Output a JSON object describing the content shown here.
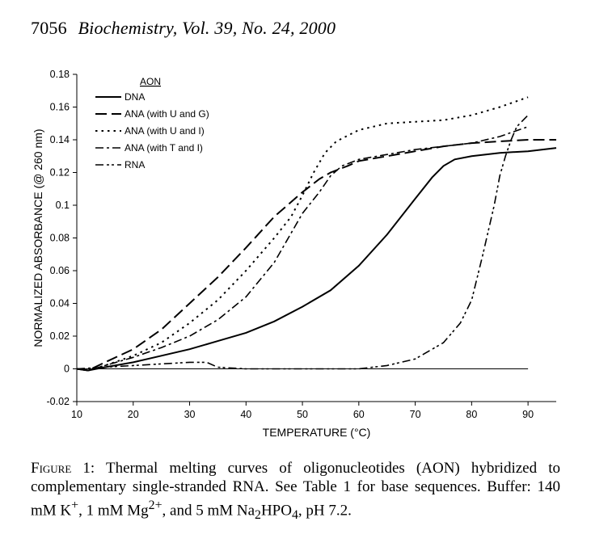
{
  "header": {
    "page_number": "7056",
    "journal": "Biochemistry, Vol. 39, No. 24, 2000"
  },
  "chart_data": {
    "type": "line",
    "xlabel": "TEMPERATURE (°C)",
    "ylabel": "NORMALIZED ABSORBANCE (@ 260 nm)",
    "xlim": [
      10,
      95
    ],
    "ylim": [
      -0.02,
      0.18
    ],
    "x_ticks": [
      "10",
      "20",
      "30",
      "40",
      "50",
      "60",
      "70",
      "80",
      "90"
    ],
    "y_ticks": [
      "-0.02",
      "0",
      "0.02",
      "0.04",
      "0.06",
      "0.08",
      "0.1",
      "0.12",
      "0.14",
      "0.16",
      "0.18"
    ],
    "legend_title": "AON",
    "legend_position": "top-left",
    "baseline": {
      "x": [
        10,
        90
      ],
      "y": [
        0,
        0
      ]
    },
    "series": [
      {
        "name": "DNA",
        "dash": "solid",
        "x": [
          10,
          12,
          15,
          20,
          25,
          30,
          35,
          40,
          45,
          50,
          55,
          60,
          65,
          70,
          73,
          75,
          77,
          80,
          85,
          90,
          95
        ],
        "y": [
          0.0,
          -0.001,
          0.001,
          0.004,
          0.008,
          0.012,
          0.017,
          0.022,
          0.029,
          0.038,
          0.048,
          0.063,
          0.082,
          0.104,
          0.117,
          0.124,
          0.128,
          0.13,
          0.132,
          0.133,
          0.135
        ]
      },
      {
        "name": "ANA (with U and G)",
        "dash": "long",
        "x": [
          10,
          12,
          15,
          20,
          25,
          30,
          35,
          40,
          45,
          50,
          53,
          55,
          58,
          60,
          65,
          70,
          75,
          80,
          85,
          90,
          95
        ],
        "y": [
          0.0,
          -0.001,
          0.004,
          0.012,
          0.024,
          0.04,
          0.056,
          0.074,
          0.093,
          0.108,
          0.116,
          0.12,
          0.124,
          0.127,
          0.13,
          0.133,
          0.136,
          0.138,
          0.139,
          0.14,
          0.14
        ]
      },
      {
        "name": "ANA (with U and I)",
        "dash": "dotted",
        "x": [
          10,
          12,
          15,
          20,
          25,
          30,
          35,
          40,
          45,
          48,
          50,
          52,
          54,
          56,
          60,
          65,
          70,
          75,
          80,
          85,
          90
        ],
        "y": [
          0.0,
          -0.001,
          0.002,
          0.008,
          0.016,
          0.028,
          0.042,
          0.06,
          0.08,
          0.093,
          0.106,
          0.12,
          0.132,
          0.139,
          0.146,
          0.15,
          0.151,
          0.152,
          0.155,
          0.16,
          0.166
        ]
      },
      {
        "name": "ANA (with T and I)",
        "dash": "dashdot",
        "x": [
          10,
          12,
          15,
          20,
          25,
          30,
          35,
          40,
          45,
          50,
          53,
          55,
          57,
          60,
          65,
          70,
          75,
          80,
          85,
          90
        ],
        "y": [
          0.0,
          -0.001,
          0.002,
          0.007,
          0.013,
          0.02,
          0.03,
          0.044,
          0.065,
          0.095,
          0.108,
          0.118,
          0.124,
          0.128,
          0.131,
          0.134,
          0.136,
          0.138,
          0.142,
          0.148
        ]
      },
      {
        "name": "RNA",
        "dash": "dashdotdot",
        "x": [
          10,
          15,
          20,
          25,
          30,
          33,
          35,
          40,
          50,
          60,
          65,
          70,
          75,
          78,
          80,
          82,
          84,
          85,
          86,
          87,
          88,
          90
        ],
        "y": [
          0.0,
          0.001,
          0.002,
          0.003,
          0.004,
          0.004,
          0.001,
          0.0,
          0.0,
          0.0,
          0.002,
          0.006,
          0.016,
          0.028,
          0.042,
          0.07,
          0.1,
          0.118,
          0.13,
          0.14,
          0.148,
          0.155
        ]
      }
    ]
  },
  "caption": {
    "label": "Figure 1:",
    "text": "Thermal melting curves of oligonucleotides (AON) hybridized to complementary single-stranded RNA. See Table 1 for base sequences. Buffer: 140 mM K",
    "k_sup": "+",
    "mg_part": ", 1 mM Mg",
    "mg_sup": "2+",
    "buffer_tail": ", and 5 mM Na",
    "na_sub": "2",
    "hpo": "HPO",
    "hpo_sub": "4",
    "end": ", pH 7.2."
  }
}
